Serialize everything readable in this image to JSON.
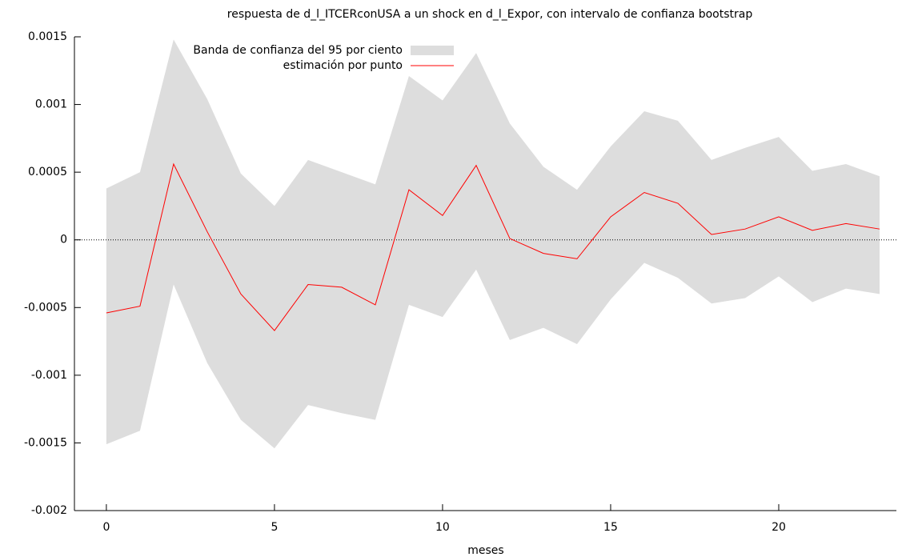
{
  "chart_data": {
    "type": "line",
    "title": "respuesta de d_l_ITCERconUSA a un shock en d_l_Expor, con intervalo de confianza bootstrap",
    "x_label": "meses",
    "x": [
      0,
      1,
      2,
      3,
      4,
      5,
      6,
      7,
      8,
      9,
      10,
      11,
      12,
      13,
      14,
      15,
      16,
      17,
      18,
      19,
      20,
      21,
      22,
      23
    ],
    "series": [
      {
        "name": "Banda de confianza del 95 por ciento",
        "color": "#dddddd",
        "kind": "band",
        "upper": [
          0.00038,
          0.0005,
          0.00148,
          0.00104,
          0.00049,
          0.00025,
          0.00059,
          0.0005,
          0.00041,
          0.00121,
          0.00103,
          0.00138,
          0.00086,
          0.00054,
          0.00037,
          0.00069,
          0.00095,
          0.00088,
          0.00059,
          0.00068,
          0.00076,
          0.00051,
          0.00056,
          0.00047
        ],
        "lower": [
          -0.00151,
          -0.00141,
          -0.00033,
          -0.00091,
          -0.00133,
          -0.00154,
          -0.00122,
          -0.00128,
          -0.00133,
          -0.00048,
          -0.00057,
          -0.00022,
          -0.00074,
          -0.00065,
          -0.00077,
          -0.00044,
          -0.00017,
          -0.00028,
          -0.00047,
          -0.00043,
          -0.00027,
          -0.00046,
          -0.00036,
          -0.0004
        ]
      },
      {
        "name": "estimación por punto",
        "color": "#ff0000",
        "kind": "line",
        "values": [
          -0.00054,
          -0.00049,
          0.00056,
          6e-05,
          -0.0004,
          -0.00067,
          -0.00033,
          -0.00035,
          -0.00048,
          0.00037,
          0.00018,
          0.00055,
          1e-05,
          -0.0001,
          -0.00014,
          0.00017,
          0.00035,
          0.00027,
          4e-05,
          8e-05,
          0.00017,
          7e-05,
          0.00012,
          8e-05
        ]
      }
    ],
    "xlim": [
      -0.95,
      23.5
    ],
    "xticks": [
      0,
      5,
      10,
      15,
      20
    ],
    "ylim": [
      -0.002,
      0.0015
    ],
    "yticks": [
      0.0015,
      0.001,
      0.0005,
      0,
      -0.0005,
      -0.001,
      -0.0015,
      -0.002
    ],
    "zero_line": true,
    "legend": "top left"
  }
}
